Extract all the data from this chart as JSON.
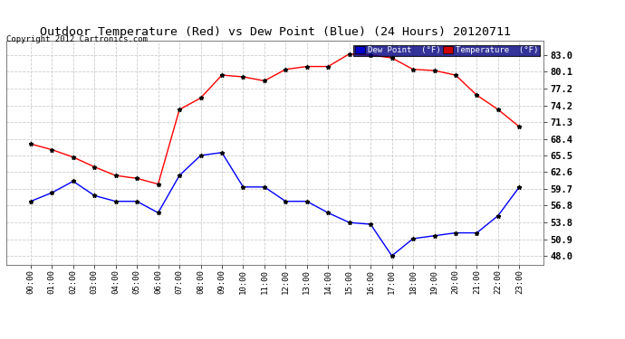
{
  "title": "Outdoor Temperature (Red) vs Dew Point (Blue) (24 Hours) 20120711",
  "copyright": "Copyright 2012 Cartronics.com",
  "background_color": "#ffffff",
  "plot_background_color": "#ffffff",
  "grid_color": "#cccccc",
  "x_labels": [
    "00:00",
    "01:00",
    "02:00",
    "03:00",
    "04:00",
    "05:00",
    "06:00",
    "07:00",
    "08:00",
    "09:00",
    "10:00",
    "11:00",
    "12:00",
    "13:00",
    "14:00",
    "15:00",
    "16:00",
    "17:00",
    "18:00",
    "19:00",
    "20:00",
    "21:00",
    "22:00",
    "23:00"
  ],
  "y_ticks": [
    48.0,
    50.9,
    53.8,
    56.8,
    59.7,
    62.6,
    65.5,
    68.4,
    71.3,
    74.2,
    77.2,
    80.1,
    83.0
  ],
  "temperature": [
    67.5,
    66.5,
    65.2,
    63.5,
    62.0,
    61.5,
    60.5,
    73.5,
    75.5,
    79.5,
    79.2,
    78.5,
    80.5,
    81.0,
    81.0,
    83.2,
    83.0,
    82.5,
    80.5,
    80.3,
    79.5,
    76.0,
    73.5,
    70.5
  ],
  "dewpoint": [
    57.5,
    59.0,
    61.0,
    58.5,
    57.5,
    57.5,
    55.5,
    62.0,
    65.5,
    66.0,
    60.0,
    60.0,
    57.5,
    57.5,
    55.5,
    53.8,
    53.5,
    48.0,
    51.0,
    51.5,
    52.0,
    52.0,
    55.0,
    60.0
  ],
  "temp_color": "red",
  "dew_color": "blue",
  "marker": "*",
  "marker_color": "black",
  "ylim": [
    46.5,
    85.5
  ],
  "legend_dew_label": "Dew Point  (°F)",
  "legend_temp_label": "Temperature  (°F)",
  "legend_dew_bg": "#0000cc",
  "legend_temp_bg": "#cc0000",
  "legend_text_color": "white"
}
